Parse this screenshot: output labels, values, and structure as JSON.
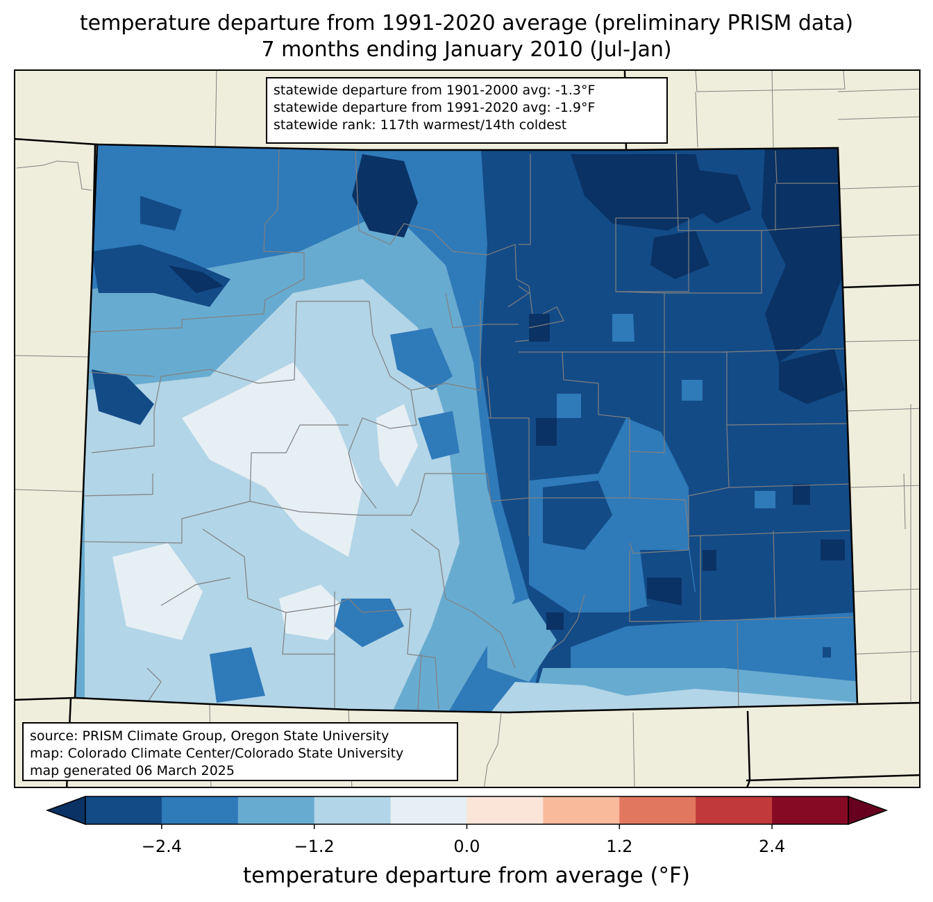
{
  "title": {
    "line1": "temperature departure from 1991-2020 average (preliminary PRISM data)",
    "line2": "7 months ending January 2010 (Jul-Jan)"
  },
  "stats": {
    "line1": "statewide departure from 1901-2000 avg: -1.3°F",
    "line2": "statewide departure from 1991-2020 avg: -1.9°F",
    "line3": "statewide rank: 117th warmest/14th coldest"
  },
  "source": {
    "line1": "source: PRISM Climate Group, Oregon State University",
    "line2": "map: Colorado Climate Center/Colorado State University",
    "line3": "map generated 06 March 2025"
  },
  "colorbar": {
    "label": "temperature departure from average (°F)",
    "range": [
      -3.0,
      3.0
    ],
    "step": 0.6,
    "ticks": [
      "−2.4",
      "−1.2",
      "0.0",
      "1.2",
      "2.4"
    ],
    "tick_values": [
      -2.4,
      -1.2,
      0.0,
      1.2,
      2.4
    ],
    "colors": [
      "#0a3264",
      "#134b87",
      "#2f7ab9",
      "#68abd0",
      "#b2d5e7",
      "#e6eff4",
      "#fbe5d8",
      "#f9b99b",
      "#e0775e",
      "#c03a3a",
      "#870a24",
      "#67001f"
    ]
  },
  "map": {
    "land_color": "#efeedc",
    "county_line_color": "#808080",
    "state_line_color": "#000000"
  }
}
